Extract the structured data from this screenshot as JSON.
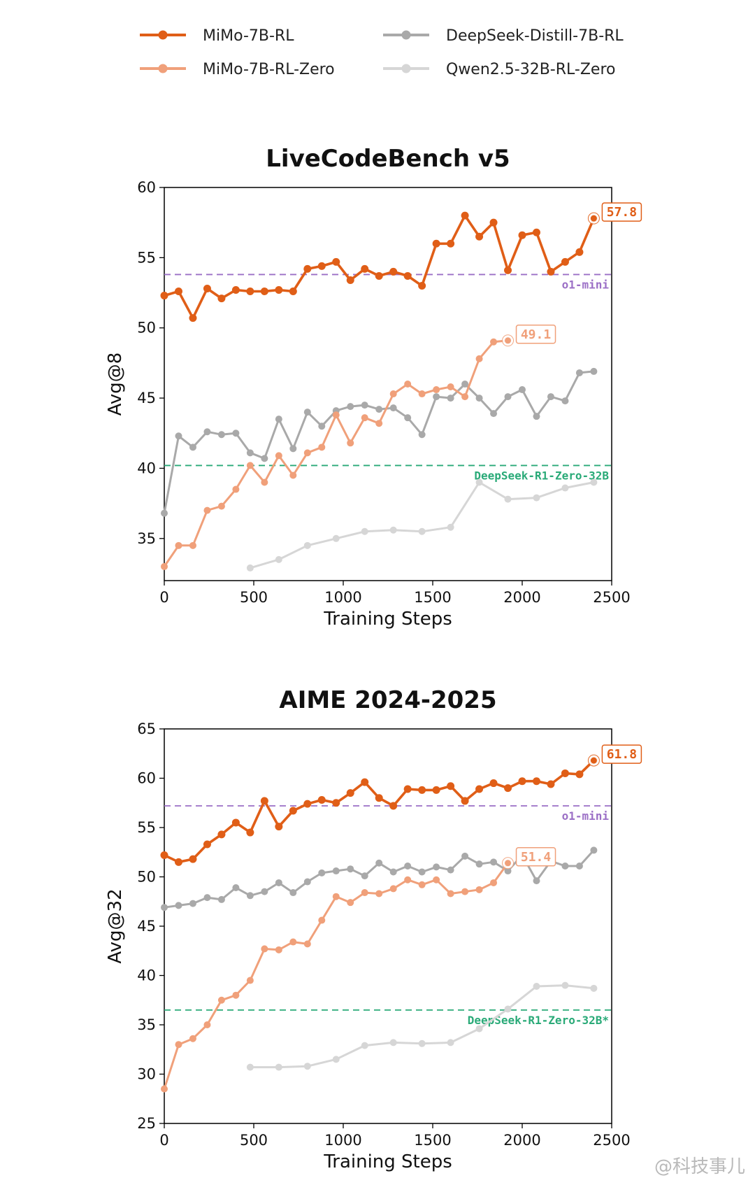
{
  "chart_data": [
    {
      "type": "line",
      "title": "LiveCodeBench v5",
      "xlabel": "Training Steps",
      "ylabel": "Avg@8",
      "xlim": [
        0,
        2500
      ],
      "ylim": [
        32,
        60
      ],
      "xticks": [
        0,
        500,
        1000,
        1500,
        2000,
        2500
      ],
      "yticks": [
        35,
        40,
        45,
        50,
        55,
        60
      ],
      "grid": false,
      "series": [
        {
          "name": "MiMo-7B-RL",
          "color": "#e05e17",
          "x": [
            0,
            80,
            160,
            240,
            320,
            400,
            480,
            560,
            640,
            720,
            800,
            880,
            960,
            1040,
            1120,
            1200,
            1280,
            1360,
            1440,
            1520,
            1600,
            1680,
            1760,
            1840,
            1920,
            2000,
            2080,
            2160,
            2240,
            2320,
            2400
          ],
          "y": [
            52.3,
            52.6,
            50.7,
            52.8,
            52.1,
            52.7,
            52.6,
            52.6,
            52.7,
            52.6,
            54.2,
            54.4,
            54.7,
            53.4,
            54.2,
            53.7,
            54.0,
            53.7,
            53.0,
            56.0,
            56.0,
            58.0,
            56.5,
            57.5,
            54.1,
            56.6,
            56.8,
            54.0,
            54.7,
            55.4,
            57.8
          ]
        },
        {
          "name": "MiMo-7B-RL-Zero",
          "color": "#f0a07a",
          "x": [
            0,
            80,
            160,
            240,
            320,
            400,
            480,
            560,
            640,
            720,
            800,
            880,
            960,
            1040,
            1120,
            1200,
            1280,
            1360,
            1440,
            1520,
            1600,
            1680,
            1760,
            1840,
            1920
          ],
          "y": [
            33.0,
            34.5,
            34.5,
            37.0,
            37.3,
            38.5,
            40.2,
            39.0,
            40.9,
            39.5,
            41.1,
            41.5,
            43.8,
            41.8,
            43.6,
            43.2,
            45.3,
            46.0,
            45.3,
            45.6,
            45.8,
            45.1,
            47.8,
            49.0,
            49.1
          ]
        },
        {
          "name": "DeepSeek-Distill-7B-RL",
          "color": "#a9a9a9",
          "x": [
            0,
            80,
            160,
            240,
            320,
            400,
            480,
            560,
            640,
            720,
            800,
            880,
            960,
            1040,
            1120,
            1200,
            1280,
            1360,
            1440,
            1520,
            1600,
            1680,
            1760,
            1840,
            1920,
            2000,
            2080,
            2160,
            2240,
            2320,
            2400
          ],
          "y": [
            36.8,
            42.3,
            41.5,
            42.6,
            42.4,
            42.5,
            41.1,
            40.7,
            43.5,
            41.4,
            44.0,
            43.0,
            44.1,
            44.4,
            44.5,
            44.2,
            44.3,
            43.6,
            42.4,
            45.1,
            45.0,
            46.0,
            45.0,
            43.9,
            45.1,
            45.6,
            43.7,
            45.1,
            44.8,
            46.8,
            46.9
          ]
        },
        {
          "name": "Qwen2.5-32B-RL-Zero",
          "color": "#d6d6d6",
          "x": [
            480,
            640,
            800,
            960,
            1120,
            1280,
            1440,
            1600,
            1760,
            1920,
            2080,
            2240,
            2400
          ],
          "y": [
            32.9,
            33.5,
            34.5,
            35.0,
            35.5,
            35.6,
            35.5,
            35.8,
            39.0,
            37.8,
            37.9,
            38.6,
            39.0
          ]
        }
      ],
      "reference_lines": [
        {
          "label": "o1-mini",
          "y": 53.8,
          "color": "#9b6fc6"
        },
        {
          "label": "DeepSeek-R1-Zero-32B",
          "y": 40.2,
          "color": "#2aaa78"
        }
      ],
      "callouts": [
        {
          "label": "57.8",
          "series": "MiMo-7B-RL",
          "x": 2400,
          "y": 57.8,
          "color": "#e05e17"
        },
        {
          "label": "49.1",
          "series": "MiMo-7B-RL-Zero",
          "x": 1920,
          "y": 49.1,
          "color": "#f0a07a"
        }
      ]
    },
    {
      "type": "line",
      "title": "AIME 2024-2025",
      "xlabel": "Training Steps",
      "ylabel": "Avg@32",
      "xlim": [
        0,
        2500
      ],
      "ylim": [
        25,
        65
      ],
      "xticks": [
        0,
        500,
        1000,
        1500,
        2000,
        2500
      ],
      "yticks": [
        25,
        30,
        35,
        40,
        45,
        50,
        55,
        60,
        65
      ],
      "grid": false,
      "series": [
        {
          "name": "MiMo-7B-RL",
          "color": "#e05e17",
          "x": [
            0,
            80,
            160,
            240,
            320,
            400,
            480,
            560,
            640,
            720,
            800,
            880,
            960,
            1040,
            1120,
            1200,
            1280,
            1360,
            1440,
            1520,
            1600,
            1680,
            1760,
            1840,
            1920,
            2000,
            2080,
            2160,
            2240,
            2320,
            2400
          ],
          "y": [
            52.2,
            51.5,
            51.8,
            53.3,
            54.3,
            55.5,
            54.5,
            57.7,
            55.1,
            56.7,
            57.4,
            57.8,
            57.5,
            58.5,
            59.6,
            58.0,
            57.2,
            58.9,
            58.8,
            58.8,
            59.2,
            57.7,
            58.9,
            59.5,
            59.0,
            59.7,
            59.7,
            59.4,
            60.5,
            60.4,
            61.8
          ]
        },
        {
          "name": "MiMo-7B-RL-Zero",
          "color": "#f0a07a",
          "x": [
            0,
            80,
            160,
            240,
            320,
            400,
            480,
            560,
            640,
            720,
            800,
            880,
            960,
            1040,
            1120,
            1200,
            1280,
            1360,
            1440,
            1520,
            1600,
            1680,
            1760,
            1840,
            1920
          ],
          "y": [
            28.5,
            33.0,
            33.6,
            35.0,
            37.5,
            38.0,
            39.5,
            42.7,
            42.6,
            43.4,
            43.2,
            45.6,
            48.0,
            47.4,
            48.4,
            48.3,
            48.8,
            49.7,
            49.2,
            49.7,
            48.3,
            48.5,
            48.7,
            49.4,
            51.4
          ]
        },
        {
          "name": "DeepSeek-Distill-7B-RL",
          "color": "#a9a9a9",
          "x": [
            0,
            80,
            160,
            240,
            320,
            400,
            480,
            560,
            640,
            720,
            800,
            880,
            960,
            1040,
            1120,
            1200,
            1280,
            1360,
            1440,
            1520,
            1600,
            1680,
            1760,
            1840,
            1920,
            2000,
            2080,
            2160,
            2240,
            2320,
            2400
          ],
          "y": [
            46.9,
            47.1,
            47.3,
            47.9,
            47.7,
            48.9,
            48.1,
            48.5,
            49.4,
            48.4,
            49.5,
            50.4,
            50.6,
            50.8,
            50.1,
            51.4,
            50.5,
            51.1,
            50.5,
            51.0,
            50.7,
            52.1,
            51.3,
            51.5,
            50.6,
            52.2,
            49.6,
            51.6,
            51.1,
            51.1,
            52.7
          ]
        },
        {
          "name": "Qwen2.5-32B-RL-Zero",
          "color": "#d6d6d6",
          "x": [
            480,
            640,
            800,
            960,
            1120,
            1280,
            1440,
            1600,
            1760,
            1920,
            2080,
            2240,
            2400
          ],
          "y": [
            30.7,
            30.7,
            30.8,
            31.5,
            32.9,
            33.2,
            33.1,
            33.2,
            34.6,
            36.6,
            38.9,
            39.0,
            38.7
          ]
        }
      ],
      "reference_lines": [
        {
          "label": "o1-mini",
          "y": 57.2,
          "color": "#9b6fc6"
        },
        {
          "label": "DeepSeek-R1-Zero-32B*",
          "y": 36.5,
          "color": "#2aaa78"
        }
      ],
      "callouts": [
        {
          "label": "61.8",
          "series": "MiMo-7B-RL",
          "x": 2400,
          "y": 61.8,
          "color": "#e05e17"
        },
        {
          "label": "51.4",
          "series": "MiMo-7B-RL-Zero",
          "x": 1920,
          "y": 51.4,
          "color": "#f0a07a"
        }
      ]
    }
  ],
  "legend": [
    {
      "name": "MiMo-7B-RL",
      "color": "#e05e17"
    },
    {
      "name": "DeepSeek-Distill-7B-RL",
      "color": "#a9a9a9"
    },
    {
      "name": "MiMo-7B-RL-Zero",
      "color": "#f0a07a"
    },
    {
      "name": "Qwen2.5-32B-RL-Zero",
      "color": "#d6d6d6"
    }
  ],
  "watermark": "@科技事儿"
}
